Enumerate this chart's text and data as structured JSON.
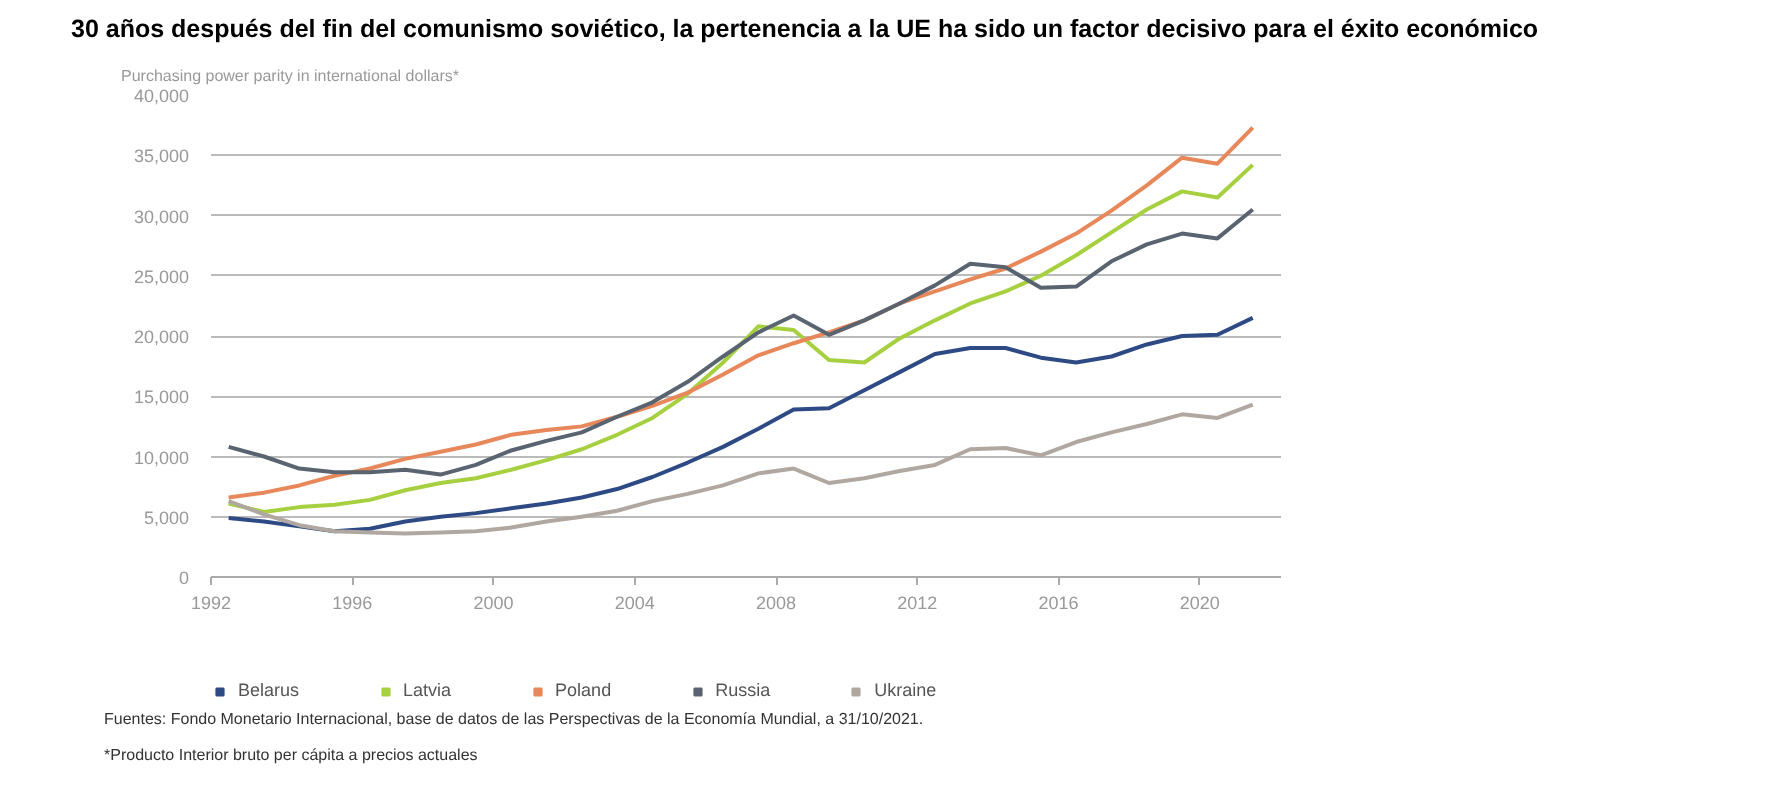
{
  "chart_data": {
    "type": "line",
    "title": "30 años después del fin del comunismo soviético, la pertenencia a la UE ha sido un factor decisivo para el éxito económico",
    "ylabel": "Purchasing power parity in international dollars*",
    "x": [
      1992.5,
      1993.5,
      1994.5,
      1995.5,
      1996.5,
      1997.5,
      1998.5,
      1999.5,
      2000.5,
      2001.5,
      2002.5,
      2003.5,
      2004.5,
      2005.5,
      2006.5,
      2007.5,
      2008.5,
      2009.5,
      2010.5,
      2011.5,
      2012.5,
      2013.5,
      2014.5,
      2015.5,
      2016.5,
      2017.5,
      2018.5,
      2019.5,
      2020.5,
      2021.5
    ],
    "series": [
      {
        "name": "Belarus",
        "color": "#2e4a84",
        "values": [
          4900,
          4600,
          4200,
          3800,
          4000,
          4600,
          5000,
          5300,
          5700,
          6100,
          6600,
          7300,
          8300,
          9500,
          10800,
          12300,
          13900,
          14000,
          15500,
          17000,
          18500,
          19000,
          19000,
          18200,
          17800,
          18300,
          19300,
          20000,
          20100,
          21500
        ]
      },
      {
        "name": "Latvia",
        "color": "#a6d040",
        "values": [
          6100,
          5400,
          5800,
          6000,
          6400,
          7200,
          7800,
          8200,
          8900,
          9700,
          10600,
          11800,
          13200,
          15200,
          17800,
          20800,
          20500,
          18000,
          17800,
          19800,
          21300,
          22700,
          23700,
          25000,
          26700,
          28600,
          30500,
          32000,
          31500,
          34200
        ]
      },
      {
        "name": "Poland",
        "color": "#e8885a",
        "values": [
          6600,
          7000,
          7600,
          8400,
          9000,
          9800,
          10400,
          11000,
          11800,
          12200,
          12500,
          13300,
          14200,
          15300,
          16800,
          18400,
          19400,
          20300,
          21300,
          22700,
          23700,
          24700,
          25600,
          27000,
          28500,
          30400,
          32500,
          34800,
          34300,
          37300
        ]
      },
      {
        "name": "Russia",
        "color": "#5a6470",
        "values": [
          10800,
          10000,
          9000,
          8700,
          8700,
          8900,
          8500,
          9300,
          10500,
          11300,
          12000,
          13300,
          14500,
          16200,
          18300,
          20300,
          21700,
          20100,
          21300,
          22700,
          24200,
          26000,
          25700,
          24000,
          24100,
          26200,
          27600,
          28500,
          28100,
          30500
        ]
      },
      {
        "name": "Ukraine",
        "color": "#b0a8a0",
        "values": [
          6300,
          5200,
          4300,
          3800,
          3700,
          3600,
          3700,
          3800,
          4100,
          4600,
          5000,
          5500,
          6300,
          6900,
          7600,
          8600,
          9000,
          7800,
          8200,
          8800,
          9300,
          10600,
          10700,
          10100,
          11200,
          12000,
          12700,
          13500,
          13200,
          14300
        ]
      }
    ],
    "xlim": [
      1992,
      2022.3
    ],
    "xticks": [
      1992,
      1996,
      2000,
      2004,
      2008,
      2012,
      2016,
      2020
    ],
    "ylim": [
      0,
      40000
    ],
    "yticks": [
      {
        "value": 0,
        "label": "0"
      },
      {
        "value": 5000,
        "label": "5,000"
      },
      {
        "value": 10000,
        "label": "10,000"
      },
      {
        "value": 15000,
        "label": "15,000"
      },
      {
        "value": 20000,
        "label": "20,000"
      },
      {
        "value": 25000,
        "label": "25,000"
      },
      {
        "value": 30000,
        "label": "30,000"
      },
      {
        "value": 35000,
        "label": "35,000"
      },
      {
        "value": 40000,
        "label": "40,000"
      }
    ],
    "grid": "y",
    "legend": "bottom",
    "marker": "none",
    "line_style": "solid",
    "annotations": [
      "Fuentes: Fondo Monetario Internacional, base de datos de las Perspectivas de la Economía Mundial, a 31/10/2021.",
      "*Producto Interior bruto per cápita a precios actuales"
    ]
  }
}
